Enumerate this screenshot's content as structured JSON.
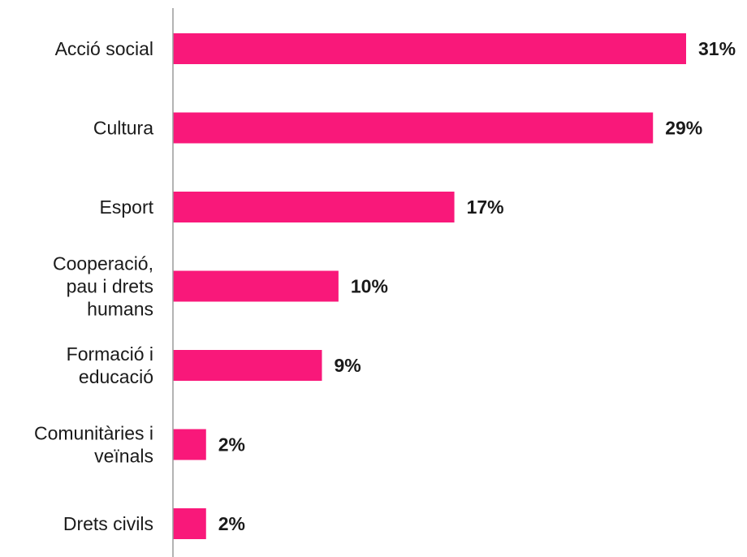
{
  "chart_data": {
    "type": "bar",
    "orientation": "horizontal",
    "categories": [
      [
        "Acció social"
      ],
      [
        "Cultura"
      ],
      [
        "Esport"
      ],
      [
        "Cooperació,",
        "pau i drets",
        "humans"
      ],
      [
        "Formació i",
        "educació"
      ],
      [
        "Comunitàries i",
        "veïnals"
      ],
      [
        "Drets civils"
      ]
    ],
    "values": [
      31,
      29,
      17,
      10,
      9,
      2,
      2
    ],
    "value_labels": [
      "31%",
      "29%",
      "17%",
      "10%",
      "9%",
      "2%",
      "2%"
    ],
    "xlim": [
      0,
      31
    ],
    "grid": false,
    "bar_color": "#f9187a",
    "axis_color": "#9a9a9a",
    "title": "",
    "xlabel": "",
    "ylabel": ""
  }
}
